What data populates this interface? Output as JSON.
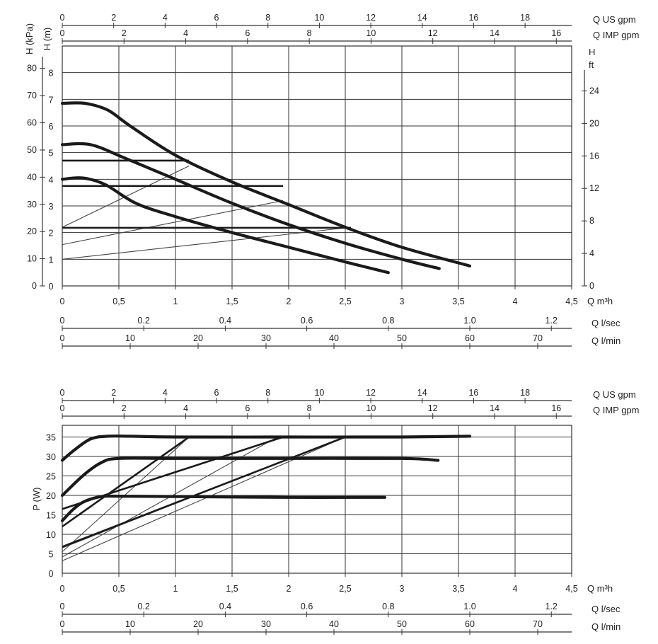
{
  "chart_data": [
    {
      "type": "line",
      "ylabel_left_outer": "H (kPa)",
      "ylabel_left_inner": "H (m)",
      "ylabel_right": "H ft",
      "xlabel": "Q m³h",
      "xlim": [
        0,
        4.5
      ],
      "ylim_m": [
        0,
        9
      ],
      "y_ticks_m": [
        "0",
        "1",
        "2",
        "3",
        "4",
        "5",
        "6",
        "7",
        "8"
      ],
      "y_ticks_kpa": [
        "0",
        "10",
        "20",
        "30",
        "40",
        "50",
        "60",
        "70",
        "80"
      ],
      "y_ticks_ft": [
        "0",
        "4",
        "8",
        "12",
        "16",
        "20",
        "24"
      ],
      "x_ticks_m3h": [
        "0",
        "0,5",
        "1",
        "1,5",
        "2",
        "2,5",
        "3",
        "3,5",
        "4",
        "4,5"
      ],
      "top_axes": [
        {
          "unit": "Q US gpm",
          "ticks": [
            "0",
            "2",
            "4",
            "6",
            "8",
            "10",
            "12",
            "14",
            "16",
            "18"
          ]
        },
        {
          "unit": "Q IMP gpm",
          "ticks": [
            "0",
            "2",
            "4",
            "6",
            "8",
            "10",
            "12",
            "14",
            "16"
          ]
        }
      ],
      "bottom_axes": [
        {
          "unit": "Q l/sec",
          "ticks": [
            "0",
            "0.2",
            "0.4",
            "0.6",
            "0.8",
            "1.0",
            "1.2"
          ]
        },
        {
          "unit": "Q l/min",
          "ticks": [
            "0",
            "10",
            "20",
            "30",
            "40",
            "50",
            "60",
            "70"
          ]
        }
      ],
      "series": [
        {
          "x": [
            0,
            0.2,
            0.4,
            0.6,
            1.0,
            1.5,
            2.0,
            2.5,
            3.0,
            3.6
          ],
          "y": [
            6.85,
            6.85,
            6.6,
            6.0,
            4.9,
            3.9,
            3.05,
            2.2,
            1.45,
            0.75
          ]
        },
        {
          "x": [
            0,
            0.25,
            0.55,
            1.0,
            1.5,
            2.0,
            2.5,
            3.0,
            3.33
          ],
          "y": [
            5.3,
            5.3,
            4.8,
            4.0,
            3.1,
            2.3,
            1.6,
            1.0,
            0.65
          ]
        },
        {
          "x": [
            0,
            0.18,
            0.38,
            0.65,
            1.0,
            1.5,
            2.0,
            2.5,
            2.88
          ],
          "y": [
            4.0,
            4.05,
            3.8,
            3.1,
            2.6,
            2.0,
            1.45,
            0.9,
            0.5
          ]
        }
      ]
    },
    {
      "type": "line",
      "ylabel": "P (W)",
      "xlabel": "Q m³h",
      "xlim": [
        0,
        4.5
      ],
      "ylim": [
        0,
        38
      ],
      "y_ticks": [
        "0",
        "5",
        "10",
        "15",
        "20",
        "25",
        "30",
        "35"
      ],
      "x_ticks_m3h": [
        "0",
        "0,5",
        "1",
        "1,5",
        "2",
        "2,5",
        "3",
        "3,5",
        "4",
        "4,5"
      ],
      "top_axes": [
        {
          "unit": "Q US gpm",
          "ticks": [
            "0",
            "2",
            "4",
            "6",
            "8",
            "10",
            "12",
            "14",
            "16",
            "18"
          ]
        },
        {
          "unit": "Q IMP gpm",
          "ticks": [
            "0",
            "2",
            "4",
            "6",
            "8",
            "10",
            "12",
            "14",
            "16"
          ]
        }
      ],
      "bottom_axes": [
        {
          "unit": "Q l/sec",
          "ticks": [
            "0",
            "0.2",
            "0.4",
            "0.6",
            "0.8",
            "1.0",
            "1.2"
          ]
        },
        {
          "unit": "Q l/min",
          "ticks": [
            "0",
            "10",
            "20",
            "30",
            "40",
            "50",
            "60",
            "70"
          ]
        }
      ],
      "series": [
        {
          "x": [
            0,
            0.1,
            0.25,
            0.4,
            0.6,
            1.0,
            2.0,
            3.0,
            3.6
          ],
          "y": [
            29,
            31.5,
            34.5,
            35.2,
            35.2,
            35.0,
            35.0,
            35.0,
            35.2
          ]
        },
        {
          "x": [
            0,
            0.2,
            0.35,
            0.5,
            1.0,
            2.0,
            3.0,
            3.32
          ],
          "y": [
            20,
            25.5,
            28.5,
            29.5,
            29.5,
            29.5,
            29.5,
            29.0
          ]
        },
        {
          "x": [
            0,
            0.1,
            0.2,
            0.35,
            0.5,
            1.0,
            2.0,
            2.85
          ],
          "y": [
            13.5,
            16.5,
            18.5,
            19.7,
            19.8,
            19.7,
            19.5,
            19.5
          ]
        }
      ]
    }
  ]
}
